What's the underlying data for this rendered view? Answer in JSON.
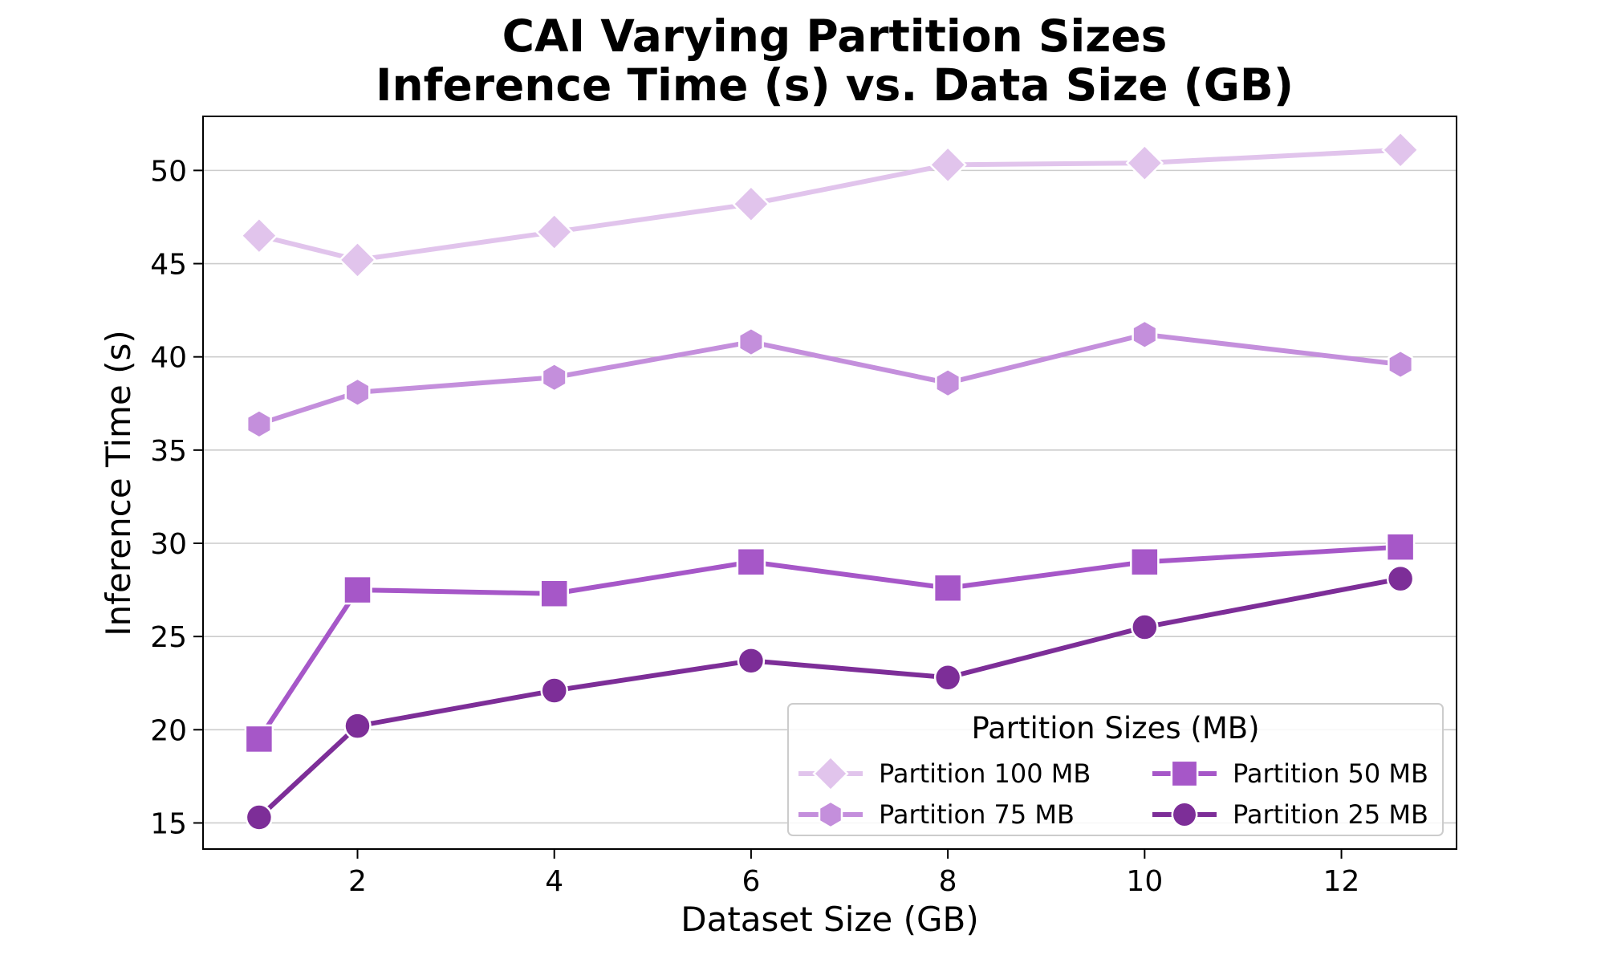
{
  "chart_data": {
    "type": "line",
    "title_line1": "CAI Varying Partition Sizes",
    "title_line2": "Inference Time (s) vs. Data Size (GB)",
    "xlabel": "Dataset Size (GB)",
    "ylabel": "Inference Time (s)",
    "xlim": [
      0.43,
      13.17
    ],
    "ylim": [
      13.6,
      52.9
    ],
    "xticks": [
      2,
      4,
      6,
      8,
      10,
      12
    ],
    "yticks": [
      15,
      20,
      25,
      30,
      35,
      40,
      45,
      50
    ],
    "grid": "horizontal",
    "x": [
      1,
      2,
      4,
      6,
      8,
      10,
      12.6
    ],
    "legend": {
      "title": "Partition Sizes (MB)",
      "location": "lower-right",
      "ncol": 2
    },
    "series": [
      {
        "name": "Partition 100 MB",
        "marker": "diamond",
        "color": "#E1C4EC",
        "values": [
          46.5,
          45.2,
          46.7,
          48.2,
          50.3,
          50.4,
          51.1
        ]
      },
      {
        "name": "Partition 75 MB",
        "marker": "hexagon",
        "color": "#C48FDC",
        "values": [
          36.4,
          38.1,
          38.9,
          40.8,
          38.6,
          41.2,
          39.6
        ]
      },
      {
        "name": "Partition 50 MB",
        "marker": "square",
        "color": "#A657C8",
        "values": [
          19.5,
          27.5,
          27.3,
          29.0,
          27.6,
          29.0,
          29.8
        ]
      },
      {
        "name": "Partition 25 MB",
        "marker": "circle",
        "color": "#7D2E98",
        "values": [
          15.3,
          20.2,
          22.1,
          23.7,
          22.8,
          25.5,
          28.1
        ]
      }
    ]
  }
}
